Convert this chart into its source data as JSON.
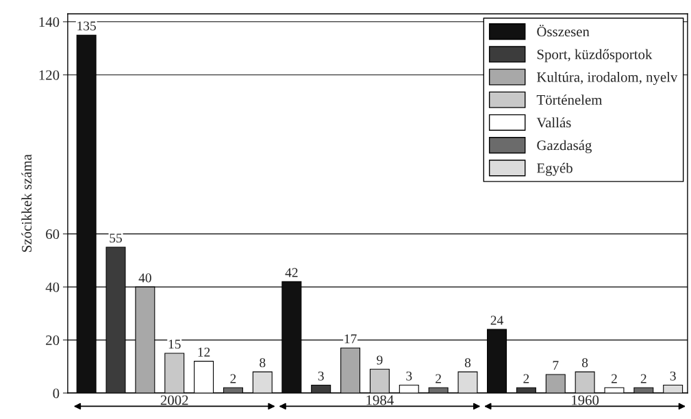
{
  "chart_data": {
    "type": "bar",
    "ylabel": "Szócikkek száma",
    "categories": [
      "2002",
      "1984",
      "1960"
    ],
    "series": [
      {
        "name": "Összesen",
        "color": "#111111",
        "values": [
          135,
          42,
          24
        ]
      },
      {
        "name": "Sport, küzdősportok",
        "color": "#3c3c3c",
        "values": [
          55,
          3,
          2
        ]
      },
      {
        "name": "Kultúra, irodalom, nyelv",
        "color": "#a8a8a8",
        "values": [
          40,
          17,
          7
        ]
      },
      {
        "name": "Történelem",
        "color": "#c8c8c8",
        "values": [
          15,
          9,
          8
        ]
      },
      {
        "name": "Vallás",
        "color": "#ffffff",
        "values": [
          12,
          3,
          2
        ]
      },
      {
        "name": "Gazdaság",
        "color": "#6b6b6b",
        "values": [
          2,
          2,
          2
        ]
      },
      {
        "name": "Egyéb",
        "color": "#dcdcdc",
        "values": [
          8,
          8,
          3
        ]
      }
    ],
    "ylim": [
      0,
      143
    ],
    "yticks": [
      0,
      20,
      40,
      60,
      120,
      140
    ],
    "data_labels": true,
    "grid": "y",
    "legend": "top right"
  }
}
